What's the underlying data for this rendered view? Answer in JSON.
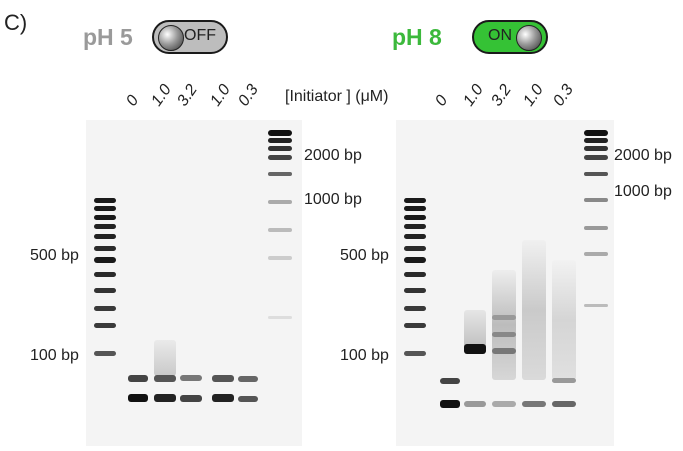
{
  "panel_label": "C)",
  "left": {
    "ph_label": "pH 5",
    "switch_label": "OFF",
    "concentrations": [
      "0",
      "1.0",
      "3.2",
      "1.0",
      "0.3"
    ],
    "markers_left": [
      "500 bp",
      "100 bp"
    ],
    "markers_right": [
      "2000 bp",
      "1000 bp"
    ]
  },
  "right": {
    "ph_label": "pH 8",
    "switch_label": "ON",
    "concentrations": [
      "0",
      "1.0",
      "3.2",
      "1.0",
      "0.3"
    ],
    "markers_left": [
      "500 bp",
      "100 bp"
    ],
    "markers_right": [
      "2000 bp",
      "1000 bp"
    ]
  },
  "initiator_label": "[Initiator ] (μM)",
  "colors": {
    "off_switch": "#bdbdbd",
    "on_switch": "#35c235",
    "on_text": "#3cb93c",
    "off_text": "#9a9a9a"
  }
}
